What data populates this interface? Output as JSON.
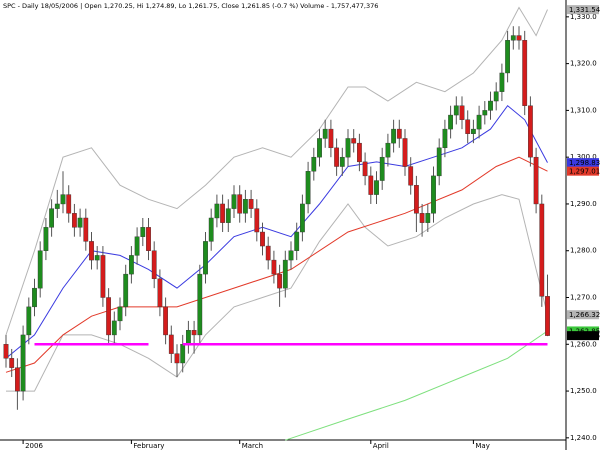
{
  "chart_data": {
    "type": "candlestick",
    "title": "SPC - Daily 18/05/2006 | Open 1,270.25, Hi 1,274.89, Lo 1,261.75, Close 1,261.85 (-0.7 %) Volume - 1,757,477,376",
    "categories": [
      null,
      null,
      null,
      "2006",
      null,
      null,
      null,
      null,
      null,
      null,
      null,
      null,
      null,
      null,
      null,
      null,
      null,
      null,
      null,
      null,
      null,
      null,
      "February",
      null,
      null,
      null,
      null,
      null,
      null,
      null,
      null,
      null,
      null,
      null,
      null,
      null,
      null,
      null,
      null,
      null,
      null,
      "March",
      null,
      null,
      null,
      null,
      null,
      null,
      null,
      null,
      null,
      null,
      null,
      null,
      null,
      null,
      null,
      null,
      null,
      null,
      null,
      null,
      null,
      null,
      "April",
      null,
      null,
      null,
      null,
      null,
      null,
      null,
      null,
      null,
      null,
      null,
      null,
      null,
      null,
      null,
      null,
      null,
      "May",
      null,
      null,
      null,
      null,
      null,
      null,
      null,
      null,
      null,
      null,
      null,
      null,
      null
    ],
    "open": [
      1260,
      1257,
      1255,
      1250,
      1262,
      1268,
      1272,
      1280,
      1285,
      1289,
      1290,
      1292,
      1288,
      1285,
      1287,
      1282,
      1278,
      1279,
      1270,
      1262,
      1265,
      1268,
      1275,
      1279,
      1283,
      1285,
      1280,
      1274,
      1268,
      1262,
      1258,
      1256,
      1260,
      1263,
      1262,
      1275,
      1282,
      1287,
      1290,
      1286,
      1289,
      1292,
      1288,
      1291,
      1289,
      1284,
      1281,
      1278,
      1275,
      1272,
      1278,
      1280,
      1284,
      1290,
      1297,
      1300,
      1304,
      1306,
      1302,
      1298,
      1300,
      1304,
      1303,
      1299,
      1296,
      1292,
      1295,
      1300,
      1303,
      1306,
      1304,
      1298,
      1294,
      1288,
      1286,
      1288,
      1296,
      1302,
      1306,
      1309,
      1311,
      1308,
      1305,
      1306,
      1309,
      1310,
      1312,
      1314,
      1318,
      1325,
      1326,
      1325,
      1311,
      1300,
      1290,
      1270.25
    ],
    "high": [
      1262,
      1259,
      1257,
      1264,
      1270,
      1274,
      1282,
      1287,
      1291,
      1293,
      1297,
      1294,
      1290,
      1289,
      1289,
      1284,
      1281,
      1281,
      1272,
      1267,
      1270,
      1277,
      1281,
      1285,
      1287,
      1287,
      1282,
      1276,
      1270,
      1264,
      1260,
      1262,
      1265,
      1265,
      1277,
      1284,
      1289,
      1292,
      1292,
      1291,
      1294,
      1294,
      1293,
      1293,
      1291,
      1286,
      1283,
      1280,
      1277,
      1280,
      1282,
      1286,
      1292,
      1299,
      1302,
      1306,
      1308,
      1308,
      1304,
      1302,
      1306,
      1306,
      1305,
      1301,
      1298,
      1297,
      1302,
      1305,
      1308,
      1308,
      1306,
      1300,
      1296,
      1290,
      1290,
      1298,
      1304,
      1308,
      1311,
      1313,
      1313,
      1310,
      1308,
      1311,
      1312,
      1314,
      1316,
      1320,
      1327,
      1328,
      1328,
      1327,
      1313,
      1302,
      1292,
      1274.89
    ],
    "low": [
      1255,
      1253,
      1246,
      1248,
      1260,
      1266,
      1270,
      1278,
      1283,
      1287,
      1288,
      1286,
      1283,
      1283,
      1280,
      1276,
      1276,
      1268,
      1260,
      1260,
      1263,
      1266,
      1273,
      1277,
      1281,
      1278,
      1272,
      1266,
      1260,
      1256,
      1253,
      1254,
      1258,
      1258,
      1260,
      1273,
      1280,
      1285,
      1284,
      1284,
      1287,
      1286,
      1286,
      1287,
      1282,
      1279,
      1276,
      1273,
      1268,
      1270,
      1276,
      1278,
      1282,
      1288,
      1295,
      1298,
      1302,
      1300,
      1296,
      1296,
      1298,
      1301,
      1297,
      1294,
      1290,
      1290,
      1293,
      1298,
      1301,
      1302,
      1296,
      1292,
      1284,
      1283,
      1284,
      1286,
      1294,
      1300,
      1304,
      1307,
      1306,
      1303,
      1303,
      1304,
      1307,
      1308,
      1310,
      1312,
      1316,
      1323,
      1323,
      1309,
      1298,
      1288,
      1268,
      1261.75
    ],
    "close": [
      1257,
      1255,
      1250,
      1262,
      1268,
      1272,
      1280,
      1285,
      1289,
      1290,
      1292,
      1288,
      1285,
      1287,
      1282,
      1278,
      1279,
      1270,
      1262,
      1265,
      1268,
      1275,
      1279,
      1283,
      1285,
      1280,
      1274,
      1268,
      1262,
      1258,
      1256,
      1260,
      1263,
      1262,
      1275,
      1282,
      1287,
      1290,
      1286,
      1289,
      1292,
      1288,
      1291,
      1289,
      1284,
      1281,
      1278,
      1275,
      1272,
      1278,
      1280,
      1284,
      1290,
      1297,
      1300,
      1304,
      1306,
      1302,
      1298,
      1300,
      1304,
      1303,
      1299,
      1296,
      1292,
      1295,
      1300,
      1303,
      1306,
      1304,
      1298,
      1294,
      1288,
      1286,
      1288,
      1296,
      1302,
      1306,
      1309,
      1311,
      1308,
      1305,
      1306,
      1309,
      1310,
      1312,
      1314,
      1318,
      1325,
      1326,
      1325,
      1311,
      1300,
      1290,
      1270.25,
      1261.85
    ],
    "up_color": "#1e8c1e",
    "down_color": "#d41c1c",
    "overlays": [
      {
        "color": "#b4b4b4",
        "x": [
          0,
          5,
          10,
          15,
          20,
          25,
          30,
          35,
          40,
          45,
          50,
          55,
          60,
          63,
          67,
          72,
          77,
          82,
          87,
          90,
          93,
          95
        ],
        "values": [
          1262,
          1280,
          1300,
          1302,
          1294,
          1291,
          1289,
          1294,
          1300,
          1302,
          1300,
          1306,
          1315,
          1315,
          1312,
          1316,
          1314,
          1318,
          1325,
          1332,
          1326,
          1331.54
        ]
      },
      {
        "color": "#b4b4b4",
        "x": [
          0,
          5,
          10,
          15,
          20,
          25,
          30,
          35,
          40,
          45,
          50,
          55,
          60,
          63,
          67,
          72,
          77,
          82,
          87,
          90,
          93,
          95
        ],
        "values": [
          1250,
          1250,
          1262,
          1262,
          1260,
          1257,
          1253,
          1262,
          1268,
          1270,
          1272,
          1282,
          1290,
          1285,
          1281,
          1283,
          1287,
          1290,
          1292,
          1291,
          1276,
          1266.32
        ]
      },
      {
        "color": "#3a3ae0",
        "x": [
          0,
          5,
          10,
          15,
          20,
          25,
          30,
          35,
          40,
          45,
          50,
          55,
          60,
          65,
          70,
          75,
          80,
          85,
          88,
          91,
          95
        ],
        "values": [
          1257,
          1262,
          1272,
          1280,
          1279,
          1276,
          1272,
          1277,
          1283,
          1285,
          1283,
          1290,
          1298,
          1299,
          1298,
          1300,
          1302,
          1306,
          1311,
          1308,
          1298.83
        ]
      },
      {
        "color": "#e23a2a",
        "x": [
          0,
          5,
          10,
          15,
          20,
          30,
          40,
          50,
          60,
          70,
          80,
          86,
          90,
          95
        ],
        "values": [
          1254,
          1256,
          1262,
          1266,
          1268,
          1268,
          1272,
          1276,
          1284,
          1288,
          1293,
          1298,
          1300,
          1297.01
        ]
      },
      {
        "color": "#7ee07e",
        "x": [
          49,
          60,
          70,
          80,
          88,
          95
        ],
        "values": [
          1239.5,
          1244,
          1248,
          1253,
          1257,
          1262.85
        ]
      }
    ],
    "support": [
      {
        "color": "#ff00ff",
        "x": [
          5,
          25
        ],
        "values": [
          1260,
          1260
        ]
      },
      {
        "color": "#ff00ff",
        "x": [
          31,
          95
        ],
        "values": [
          1260,
          1260
        ]
      }
    ],
    "price_tags": [
      {
        "label": "1,331.54",
        "value": 1331.54,
        "color": "#b4b4b4"
      },
      {
        "label": "1,298.83",
        "value": 1298.83,
        "color": "#3a3ae0"
      },
      {
        "label": "1,297.01",
        "value": 1297.01,
        "color": "#e23a2a"
      },
      {
        "label": "1,266.32",
        "value": 1266.32,
        "color": "#b4b4b4"
      },
      {
        "label": "1,262.85",
        "value": 1262.85,
        "color": "#3cc83c"
      },
      {
        "label": "1,261.85",
        "value": 1261.85,
        "color": "#000000"
      }
    ],
    "ylim": [
      1237.4,
      1333.6
    ],
    "yticks": [
      {
        "value": 1240,
        "label": "1,240.0"
      },
      {
        "value": 1250,
        "label": "1,250.0"
      },
      {
        "value": 1260,
        "label": "1,260.0"
      },
      {
        "value": 1270,
        "label": "1,270.0"
      },
      {
        "value": 1280,
        "label": "1,280.0"
      },
      {
        "value": 1290,
        "label": "1,290.0"
      },
      {
        "value": 1300,
        "label": "1,300.0"
      },
      {
        "value": 1310,
        "label": "1,310.0"
      },
      {
        "value": 1320,
        "label": "1,320.0"
      },
      {
        "value": 1330,
        "label": "1,330.0"
      }
    ]
  }
}
